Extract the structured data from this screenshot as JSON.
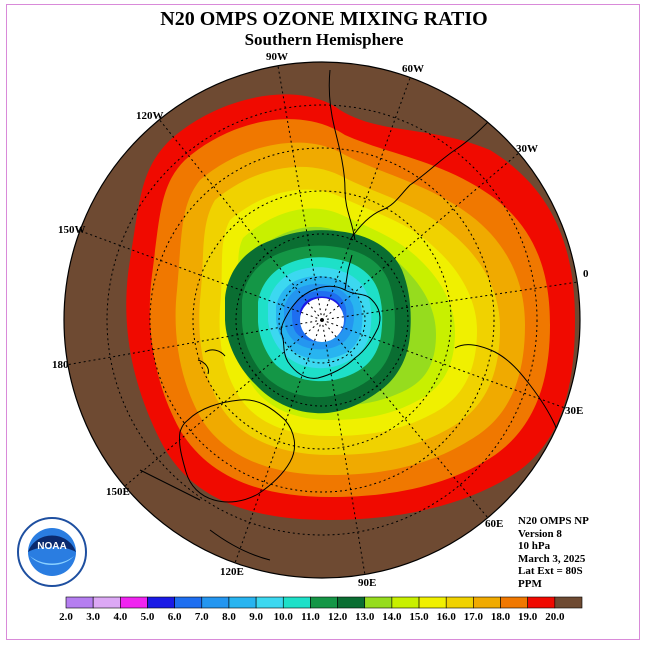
{
  "title": "N20 OMPS OZONE MIXING RATIO",
  "subtitle": "Southern Hemisphere",
  "longitude_labels": [
    "90W",
    "60W",
    "30W",
    "0",
    "30E",
    "60E",
    "90E",
    "120E",
    "150E",
    "180",
    "150W",
    "120W"
  ],
  "info": {
    "line1": "N20 OMPS NP",
    "line2": "Version 8",
    "line3": "10 hPa",
    "line4": "March 3, 2025",
    "line5": "Lat Ext = 80S",
    "line6": "PPM"
  },
  "logo": {
    "text": "NOAA",
    "ring_text": "NATIONAL OCEANIC AND ATMOSPHERIC ADMINISTRATION · U.S. DEPARTMENT OF COMMERCE"
  },
  "colorbar": {
    "labels": [
      "2.0",
      "3.0",
      "4.0",
      "5.0",
      "6.0",
      "7.0",
      "8.0",
      "9.0",
      "10.0",
      "11.0",
      "12.0",
      "13.0",
      "14.0",
      "15.0",
      "16.0",
      "17.0",
      "18.0",
      "19.0",
      "20.0"
    ],
    "colors": [
      "#b57ef0",
      "#dca8f5",
      "#f024f0",
      "#1a1ae6",
      "#1e6ef0",
      "#2496f0",
      "#28b4f0",
      "#3cd8f0",
      "#1ee0c8",
      "#149646",
      "#0a6e32",
      "#96dc1e",
      "#c8f000",
      "#f0f000",
      "#f0d200",
      "#f0aa00",
      "#f07800",
      "#f00a00",
      "#6e4a32"
    ]
  }
}
